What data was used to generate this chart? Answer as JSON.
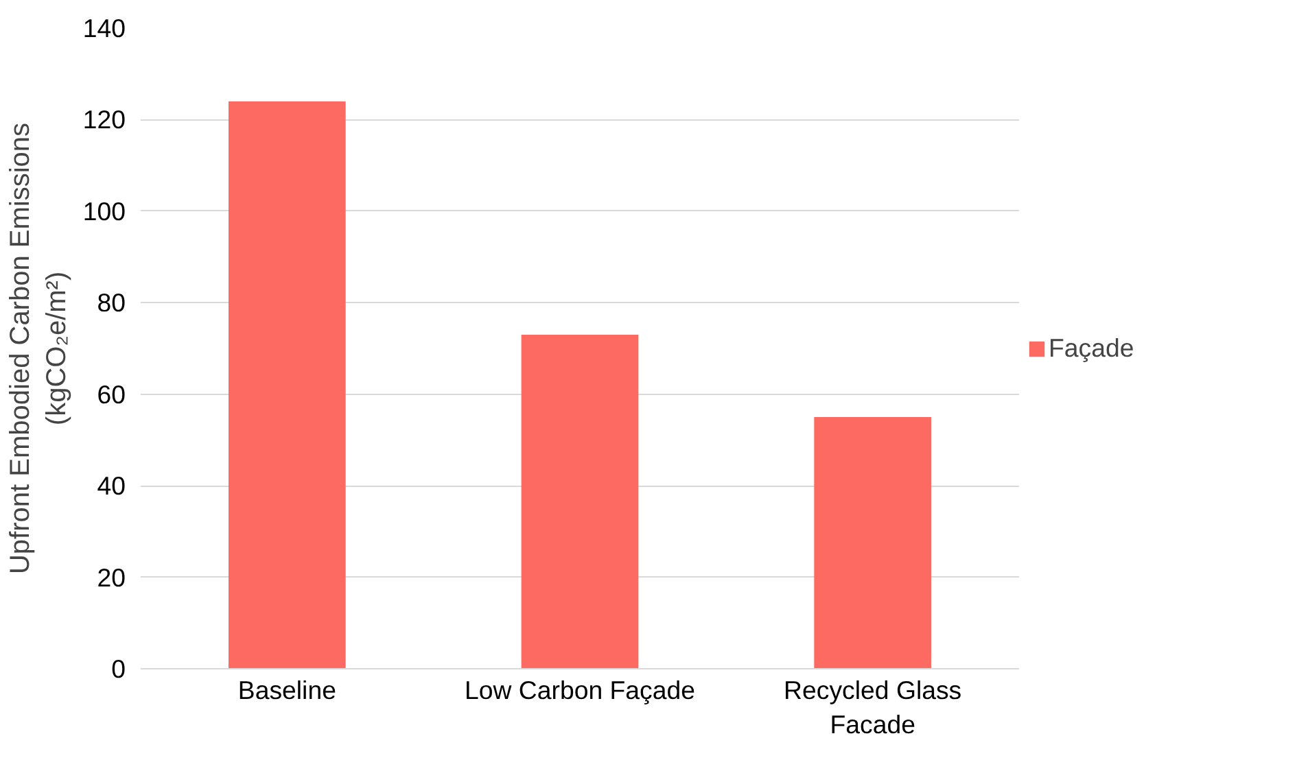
{
  "chart_data": {
    "type": "bar",
    "categories": [
      "Baseline",
      "Low Carbon Façade",
      "Recycled Glass Facade"
    ],
    "series": [
      {
        "name": "Façade",
        "color": "#fc6a61",
        "values": [
          124,
          73,
          55
        ]
      }
    ],
    "ylabel": "Upfront Embodied Carbon Emissions\n(kgCO₂e/m²)",
    "ylim": [
      0,
      140
    ],
    "yticks": [
      0,
      20,
      40,
      60,
      80,
      100,
      120,
      140
    ],
    "grid": "y",
    "legend": "right"
  }
}
